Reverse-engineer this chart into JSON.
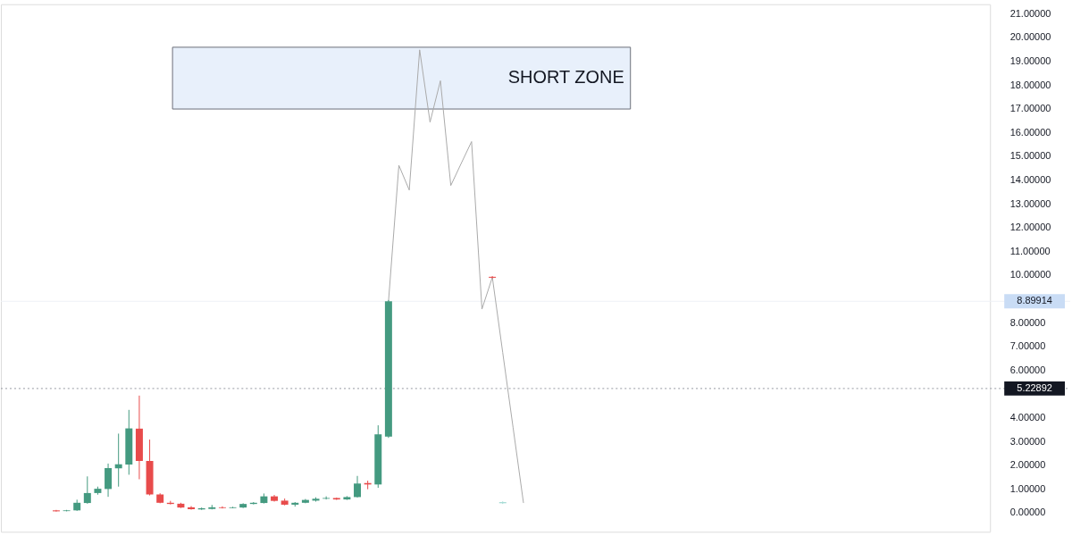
{
  "chart_data": {
    "type": "candlestick",
    "categories": [
      null,
      null,
      null,
      null,
      null,
      null,
      null,
      null,
      null,
      null,
      null,
      null,
      null,
      null,
      null,
      null,
      null,
      null,
      null,
      null,
      null,
      null,
      null,
      null,
      null,
      null,
      null,
      null,
      null,
      null,
      null,
      null,
      null,
      null,
      null,
      null,
      null,
      null,
      null,
      null,
      null,
      null,
      null,
      null,
      null,
      null,
      null,
      null,
      null,
      null,
      null,
      null,
      null,
      null,
      null,
      null,
      null,
      null,
      null,
      null,
      null,
      null,
      null,
      null,
      null,
      null,
      null,
      null,
      null,
      null,
      null,
      null,
      null,
      null,
      null,
      null,
      null,
      null,
      null,
      null,
      null,
      null,
      null,
      null,
      null,
      null,
      null,
      null,
      null,
      null
    ],
    "series": [
      {
        "ohlc": [
          [
            0.1,
            0.12,
            0.05,
            0.06
          ],
          [
            0.07,
            0.12,
            0.06,
            0.1
          ],
          [
            0.1,
            0.55,
            0.08,
            0.42
          ],
          [
            0.41,
            1.53,
            0.38,
            0.83
          ],
          [
            0.83,
            1.1,
            0.76,
            1.01
          ],
          [
            1.0,
            2.07,
            0.67,
            1.88
          ],
          [
            1.87,
            3.33,
            1.1,
            2.04
          ],
          [
            2.03,
            4.33,
            1.6,
            3.55
          ],
          [
            3.54,
            4.93,
            1.41,
            2.18
          ],
          [
            2.18,
            3.08,
            0.73,
            0.77
          ],
          [
            0.77,
            0.82,
            0.4,
            0.42
          ],
          [
            0.42,
            0.5,
            0.35,
            0.37
          ],
          [
            0.38,
            0.42,
            0.2,
            0.22
          ],
          [
            0.23,
            0.28,
            0.13,
            0.15
          ],
          [
            0.14,
            0.22,
            0.12,
            0.19
          ],
          [
            0.16,
            0.33,
            0.14,
            0.23
          ],
          [
            0.23,
            0.27,
            0.18,
            0.2
          ],
          [
            0.2,
            0.25,
            0.19,
            0.23
          ],
          [
            0.22,
            0.4,
            0.2,
            0.37
          ],
          [
            0.37,
            0.45,
            0.35,
            0.42
          ],
          [
            0.41,
            0.81,
            0.39,
            0.69
          ],
          [
            0.69,
            0.75,
            0.47,
            0.5
          ],
          [
            0.51,
            0.6,
            0.31,
            0.34
          ],
          [
            0.34,
            0.45,
            0.26,
            0.42
          ],
          [
            0.42,
            0.58,
            0.4,
            0.54
          ],
          [
            0.51,
            0.65,
            0.47,
            0.59
          ],
          [
            0.59,
            0.69,
            0.56,
            0.62
          ],
          [
            0.62,
            0.64,
            0.54,
            0.56
          ],
          [
            0.56,
            0.7,
            0.54,
            0.66
          ],
          [
            0.66,
            1.55,
            0.64,
            1.23
          ],
          [
            1.25,
            1.35,
            0.99,
            1.19
          ],
          [
            1.19,
            3.68,
            1.05,
            3.3
          ],
          [
            3.2,
            8.95,
            3.15,
            8.89914
          ],
          null,
          null,
          null,
          null,
          null,
          null,
          null,
          null,
          null,
          [
            9.93,
            9.96,
            9.86,
            9.89
          ],
          [
            0.4,
            0.48,
            0.37,
            0.45
          ],
          null,
          null,
          null,
          null,
          null,
          null,
          null,
          null,
          null,
          null,
          null,
          null,
          null,
          null,
          null,
          null,
          null,
          null,
          null,
          null,
          null,
          null,
          null,
          null,
          null,
          null,
          null,
          null,
          null,
          null,
          null,
          null,
          null,
          null,
          null,
          null,
          null,
          null,
          null,
          null,
          null,
          null,
          null,
          null,
          null,
          null
        ],
        "colors": [
          "#e84b4b",
          "#449a80",
          "#449a80",
          "#449a80",
          "#449a80",
          "#449a80",
          "#449a80",
          "#449a80",
          "#e84b4b",
          "#e84b4b",
          "#e84b4b",
          "#e84b4b",
          "#e84b4b",
          "#e84b4b",
          "#449a80",
          "#449a80",
          "#e84b4b",
          "#449a80",
          "#449a80",
          "#449a80",
          "#449a80",
          "#e84b4b",
          "#e84b4b",
          "#449a80",
          "#449a80",
          "#449a80",
          "#449a80",
          "#e84b4b",
          "#449a80",
          "#449a80",
          "#e84b4b",
          "#449a80",
          "#449a80",
          null,
          null,
          null,
          null,
          null,
          null,
          null,
          null,
          null,
          "#e84b4b",
          "#a8dcd6",
          null,
          null,
          null,
          null,
          null,
          null,
          null,
          null,
          null,
          null,
          null,
          null,
          null,
          null,
          null,
          null,
          null,
          null,
          null,
          null,
          null,
          null,
          null,
          null,
          null,
          null,
          null,
          null,
          null,
          null,
          null,
          null,
          null,
          null,
          null,
          null,
          null,
          null,
          null,
          null,
          null,
          null,
          null,
          null,
          null,
          null
        ]
      },
      {
        "type": "line",
        "color": "#aaaaaa",
        "values": [
          null,
          null,
          null,
          null,
          null,
          null,
          null,
          null,
          null,
          null,
          null,
          null,
          null,
          null,
          null,
          null,
          null,
          null,
          null,
          null,
          null,
          null,
          null,
          null,
          null,
          null,
          null,
          null,
          null,
          null,
          null,
          null,
          8.9,
          14.62,
          13.58,
          19.48,
          16.44,
          18.18,
          13.77,
          14.7,
          15.62,
          8.57,
          9.91,
          6.74,
          3.58,
          0.41,
          null,
          null,
          null,
          null,
          null,
          null,
          null,
          null,
          null,
          null,
          null,
          null,
          null,
          null,
          null,
          null,
          null,
          null,
          null,
          null,
          null,
          null,
          null,
          null,
          null,
          null,
          null,
          null,
          null,
          null,
          null,
          null,
          null,
          null,
          null,
          null,
          null,
          null,
          null,
          null,
          null,
          null,
          null,
          null
        ]
      }
    ],
    "ylim": [
      -0.8,
      21.4
    ],
    "yticks": [
      {
        "value": 0,
        "label": "0.00000"
      },
      {
        "value": 1,
        "label": "1.00000"
      },
      {
        "value": 2,
        "label": "2.00000"
      },
      {
        "value": 3,
        "label": "3.00000"
      },
      {
        "value": 4,
        "label": "4.00000"
      },
      {
        "value": 6,
        "label": "6.00000"
      },
      {
        "value": 7,
        "label": "7.00000"
      },
      {
        "value": 8,
        "label": "8.00000"
      },
      {
        "value": 10,
        "label": "10.00000"
      },
      {
        "value": 11,
        "label": "11.00000"
      },
      {
        "value": 12,
        "label": "12.00000"
      },
      {
        "value": 13,
        "label": "13.00000"
      },
      {
        "value": 14,
        "label": "14.00000"
      },
      {
        "value": 15,
        "label": "15.00000"
      },
      {
        "value": 16,
        "label": "16.00000"
      },
      {
        "value": 17,
        "label": "17.00000"
      },
      {
        "value": 18,
        "label": "18.00000"
      },
      {
        "value": 19,
        "label": "19.00000"
      },
      {
        "value": 20,
        "label": "20.00000"
      },
      {
        "value": 21,
        "label": "21.00000"
      }
    ],
    "ref_lines": [
      {
        "axis": "y",
        "value": 8.89914,
        "label": "8.89914",
        "color": "#eef1f6",
        "line_style": "solid"
      },
      {
        "axis": "y",
        "value": 5.22892,
        "label": "5.22892",
        "color": "#9598a1",
        "line_style": "dotted"
      }
    ],
    "bands": [
      {
        "axis": "y",
        "from": 16.99,
        "to": 19.59,
        "label": "SHORT ZONE",
        "color": "#e8f0fb"
      }
    ],
    "grid": false
  }
}
